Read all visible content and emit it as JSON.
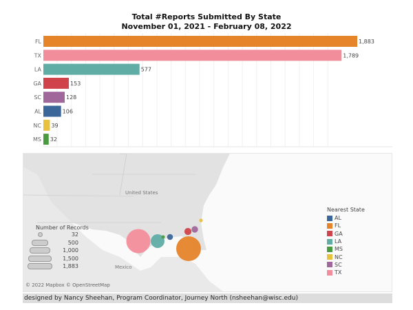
{
  "chart_data": [
    {
      "type": "bar",
      "orientation": "horizontal",
      "title": "Total #Reports Submitted By State",
      "subtitle": "November 01, 2021 - February 08, 2022",
      "categories": [
        "FL",
        "TX",
        "LA",
        "GA",
        "SC",
        "AL",
        "NC",
        "MS"
      ],
      "values": [
        1883,
        1789,
        577,
        153,
        128,
        106,
        39,
        32
      ],
      "data_labels": [
        "1,883",
        "1,789",
        "577",
        "153",
        "128",
        "106",
        "39",
        "32"
      ],
      "colors": [
        "#e6842a",
        "#f28e9b",
        "#5fada5",
        "#d0434b",
        "#a0679b",
        "#3a6699",
        "#e8c13f",
        "#4a9a3f"
      ],
      "grid": "vertical",
      "xlabel": "",
      "ylabel": ""
    },
    {
      "type": "scatter",
      "subtype": "bubble-map",
      "map_labels": {
        "us": "United States",
        "mexico": "Mexico"
      },
      "attribution": "© 2022 Mapbox © OpenStreetMap",
      "points": [
        {
          "state": "TX",
          "value": 1789
        },
        {
          "state": "LA",
          "value": 577
        },
        {
          "state": "MS",
          "value": 32
        },
        {
          "state": "AL",
          "value": 106
        },
        {
          "state": "FL",
          "value": 1883
        },
        {
          "state": "GA",
          "value": 153
        },
        {
          "state": "SC",
          "value": 128
        },
        {
          "state": "NC",
          "value": 39
        }
      ],
      "color_legend": {
        "title": "Nearest State",
        "items": [
          {
            "label": "AL",
            "color": "#3a6699"
          },
          {
            "label": "FL",
            "color": "#e6842a"
          },
          {
            "label": "GA",
            "color": "#d0434b"
          },
          {
            "label": "LA",
            "color": "#5fada5"
          },
          {
            "label": "MS",
            "color": "#4a9a3f"
          },
          {
            "label": "NC",
            "color": "#e8c13f"
          },
          {
            "label": "SC",
            "color": "#a0679b"
          },
          {
            "label": "TX",
            "color": "#f28e9b"
          }
        ]
      },
      "size_legend": {
        "title": "Number of Records",
        "items": [
          "32",
          "500",
          "1,000",
          "1,500",
          "1,883"
        ]
      }
    }
  ],
  "footer": "designed by Nancy Sheehan, Program Coordinator, Journey North (nsheehan@wisc.edu)"
}
